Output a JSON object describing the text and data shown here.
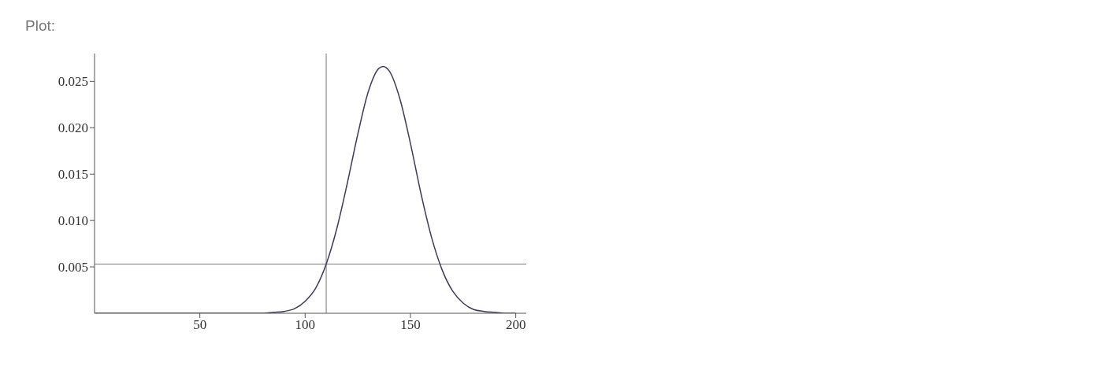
{
  "chart_data": {
    "type": "line",
    "title": "Plot:",
    "x": [
      0,
      20,
      40,
      60,
      70,
      80,
      85,
      90,
      95,
      100,
      105,
      110,
      115,
      120,
      125,
      130,
      135,
      137,
      140,
      145,
      150,
      155,
      160,
      165,
      170,
      175,
      180,
      185,
      190,
      195,
      200
    ],
    "values": [
      0,
      0,
      0,
      0,
      0,
      0,
      0.0001,
      0.0002,
      0.0005,
      0.0013,
      0.0027,
      0.0053,
      0.0091,
      0.014,
      0.0193,
      0.0239,
      0.0264,
      0.0266,
      0.0261,
      0.0231,
      0.0183,
      0.0129,
      0.0082,
      0.0047,
      0.0024,
      0.0011,
      0.0004,
      0.0002,
      0.0001,
      0,
      0
    ],
    "color": "#3b3b5c",
    "xlim": [
      0,
      205
    ],
    "xticks": [
      50,
      100,
      150,
      200
    ],
    "ylim": [
      0,
      0.028
    ],
    "yticks": [
      0.005,
      {
        "value": 0.01,
        "label": "0.010"
      },
      0.015,
      {
        "value": 0.02,
        "label": "0.020"
      },
      0.025
    ],
    "ref_lines": [
      {
        "axis": "x",
        "value": 110,
        "color": "#777777"
      },
      {
        "axis": "y",
        "value": 0.0053,
        "color": "#777777"
      }
    ]
  }
}
